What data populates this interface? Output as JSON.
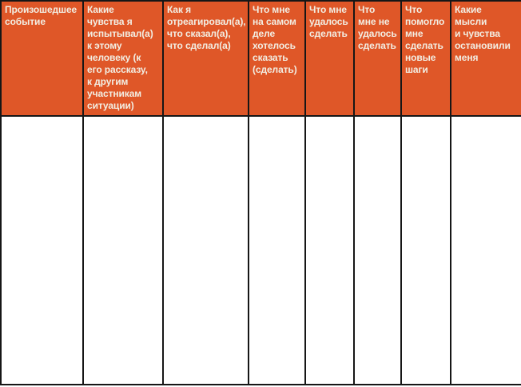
{
  "table": {
    "headers": [
      "Произошедшее\nсобытие",
      "Какие\nчувства я\nиспытывал(а)\nк этому\nчеловеку (к\nего рассказу,\nк другим\nучастникам\nситуации)",
      "Как я\nотреагировал(а),\nчто сказал(а),\nчто сделал(а)",
      "Что мне\nна самом\nделе\nхотелось\nсказать\n(сделать)",
      "Что мне\nудалось\nсделать",
      "Что\nмне не\nудалось\nсделать",
      "Что\nпомогло\nмне\nсделать\nновые\nшаги",
      "Какие\nмысли\nи чувства\nостановили\nменя"
    ],
    "empty_cells": [
      "",
      "",
      "",
      "",
      "",
      "",
      "",
      ""
    ]
  },
  "colors": {
    "header_bg": "#df5728",
    "header_text": "#f2eee3",
    "grid_line": "#161616",
    "cell_bg": "#ffffff"
  }
}
